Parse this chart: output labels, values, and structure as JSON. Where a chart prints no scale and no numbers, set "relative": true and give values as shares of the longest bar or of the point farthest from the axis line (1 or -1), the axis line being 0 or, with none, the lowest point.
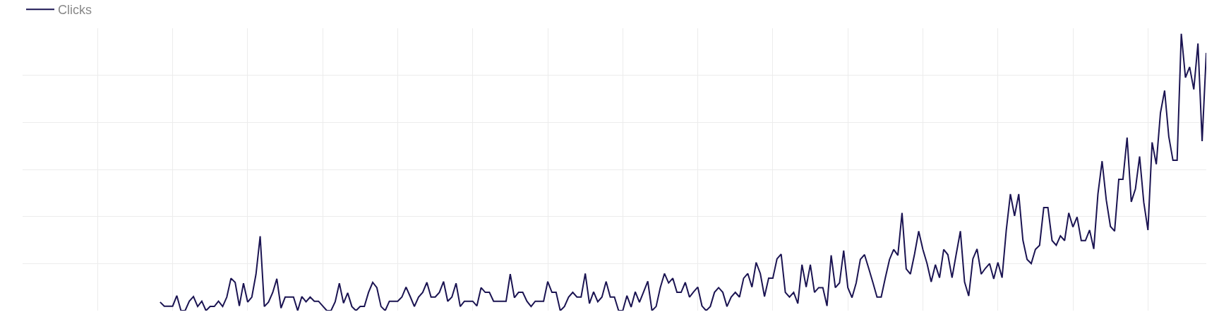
{
  "chart_data": {
    "type": "line",
    "relative": true,
    "grid": true,
    "legend": "top left",
    "marker": "none",
    "line_style": "solid",
    "categories": [
      null,
      null,
      null,
      null,
      null,
      null,
      null,
      null,
      null,
      null,
      null,
      null,
      null,
      null,
      null,
      null,
      null,
      null,
      null,
      null,
      null,
      null,
      null,
      null,
      null,
      null,
      null,
      null,
      null,
      null,
      null,
      null,
      null,
      null,
      null,
      null,
      null,
      null,
      null,
      null,
      null,
      null,
      null,
      null,
      null,
      null,
      null,
      null,
      null,
      null,
      null,
      null,
      null,
      null,
      null,
      null,
      null,
      null,
      null,
      null,
      null,
      null,
      null,
      null,
      null,
      null,
      null,
      null,
      null,
      null,
      null,
      null,
      null,
      null,
      null,
      null,
      null,
      null,
      null,
      null,
      null,
      null,
      null,
      null,
      null,
      null,
      null,
      null,
      null,
      null,
      null,
      null,
      null,
      null,
      null,
      null,
      null,
      null,
      null,
      null,
      null,
      null,
      null,
      null,
      null,
      null,
      null,
      null,
      null,
      null,
      null,
      null,
      null,
      null,
      null,
      null,
      null,
      null,
      null,
      null,
      null,
      null,
      null,
      null,
      null,
      null,
      null,
      null,
      null,
      null,
      null,
      null,
      null,
      null,
      null,
      null,
      null,
      null,
      null,
      null,
      null,
      null,
      null,
      null,
      null,
      null,
      null,
      null,
      null,
      null,
      null,
      null,
      null,
      null,
      null,
      null,
      null,
      null,
      null,
      null,
      null,
      null,
      null,
      null,
      null,
      null,
      null,
      null,
      null,
      null,
      null,
      null,
      null,
      null,
      null,
      null,
      null,
      null,
      null,
      null,
      null,
      null,
      null,
      null,
      null,
      null,
      null,
      null,
      null,
      null,
      null,
      null,
      null,
      null,
      null,
      null,
      null,
      null,
      null,
      null,
      null,
      null,
      null,
      null,
      null,
      null,
      null,
      null,
      null,
      null,
      null,
      null,
      null,
      null,
      null,
      null,
      null,
      null,
      null,
      null,
      null,
      null,
      null,
      null,
      null,
      null,
      null,
      null,
      null,
      null,
      null,
      null,
      null,
      null,
      null,
      null,
      null,
      null,
      null,
      null,
      null,
      null,
      null,
      null,
      null,
      null,
      null,
      null,
      null,
      null,
      null,
      null,
      null,
      null,
      null,
      null,
      null,
      null,
      null,
      null,
      null,
      null,
      null,
      null,
      null,
      null,
      null,
      null,
      null,
      null,
      null,
      null,
      null,
      null,
      null,
      null,
      null,
      null,
      null,
      null,
      null,
      null,
      null,
      null,
      null
    ],
    "series": [
      {
        "name": "Clicks",
        "color": "#1b1452",
        "values": [
          null,
          null,
          null,
          null,
          null,
          null,
          null,
          null,
          null,
          null,
          null,
          null,
          null,
          null,
          null,
          null,
          null,
          null,
          null,
          null,
          null,
          null,
          null,
          null,
          null,
          null,
          null,
          null,
          null,
          null,
          null,
          null,
          null,
          0.031,
          0.016,
          0.016,
          0.016,
          0.054,
          0,
          0,
          0.034,
          0.051,
          0.015,
          0.034,
          0,
          0.015,
          0.015,
          0.034,
          0.015,
          0.049,
          0.117,
          0.102,
          0.017,
          0.099,
          0.031,
          0.049,
          0.132,
          0.269,
          0.015,
          0.031,
          0.065,
          0.115,
          0.009,
          0.049,
          0.049,
          0.049,
          0,
          0.051,
          0.032,
          0.049,
          0.034,
          0.034,
          0.017,
          0,
          0,
          0.032,
          0.099,
          0.027,
          0.064,
          0.015,
          0,
          0.015,
          0.015,
          0.066,
          0.102,
          0.083,
          0.015,
          0,
          0.034,
          0.034,
          0.034,
          0.049,
          0.085,
          0.051,
          0.015,
          0.049,
          0.066,
          0.102,
          0.049,
          0.049,
          0.066,
          0.105,
          0.034,
          0.049,
          0.099,
          0.015,
          0.034,
          0.034,
          0.034,
          0.017,
          0.083,
          0.066,
          0.066,
          0.034,
          0.034,
          0.034,
          0.034,
          0.132,
          0.047,
          0.066,
          0.066,
          0.034,
          0.015,
          0.034,
          0.034,
          0.034,
          0.105,
          0.066,
          0.066,
          0,
          0.015,
          0.049,
          0.066,
          0.049,
          0.049,
          0.134,
          0.026,
          0.068,
          0.032,
          0.049,
          0.105,
          0.049,
          0.049,
          0,
          0,
          0.054,
          0.013,
          0.068,
          0.03,
          0.068,
          0.106,
          0,
          0.015,
          0.083,
          0.134,
          0.1,
          0.117,
          0.066,
          0.066,
          0.102,
          0.049,
          0.068,
          0.085,
          0.017,
          0,
          0.015,
          0.066,
          0.083,
          0.066,
          0.015,
          0.049,
          0.066,
          0.049,
          0.117,
          0.134,
          0.085,
          0.174,
          0.134,
          0.051,
          0.117,
          0.117,
          0.187,
          0.204,
          0.066,
          0.049,
          0.066,
          0.026,
          0.166,
          0.085,
          0.166,
          0.066,
          0.083,
          0.083,
          0.017,
          0.2,
          0.083,
          0.1,
          0.217,
          0.083,
          0.047,
          0.1,
          0.185,
          0.202,
          0.153,
          0.102,
          0.049,
          0.049,
          0.119,
          0.185,
          0.221,
          0.2,
          0.353,
          0.151,
          0.132,
          0.204,
          0.287,
          0.221,
          0.17,
          0.104,
          0.166,
          0.119,
          0.221,
          0.202,
          0.119,
          0.204,
          0.287,
          0.104,
          0.053,
          0.187,
          0.223,
          0.132,
          0.153,
          0.17,
          0.115,
          0.174,
          0.119,
          0.289,
          0.421,
          0.342,
          0.421,
          0.255,
          0.185,
          0.17,
          0.221,
          0.236,
          0.372,
          0.372,
          0.253,
          0.236,
          0.27,
          0.253,
          0.353,
          0.302,
          0.338,
          0.253,
          0.253,
          0.291,
          0.223,
          0.421,
          0.54,
          0.4,
          0.304,
          0.287,
          0.474,
          0.474,
          0.625,
          0.393,
          0.44,
          0.557,
          0.391,
          0.291,
          0.608,
          0.529,
          0.714,
          0.795,
          0.629,
          0.543,
          0.543,
          1,
          0.842,
          0.88,
          0.799,
          0.965,
          0.612,
          0.931
        ]
      }
    ]
  }
}
